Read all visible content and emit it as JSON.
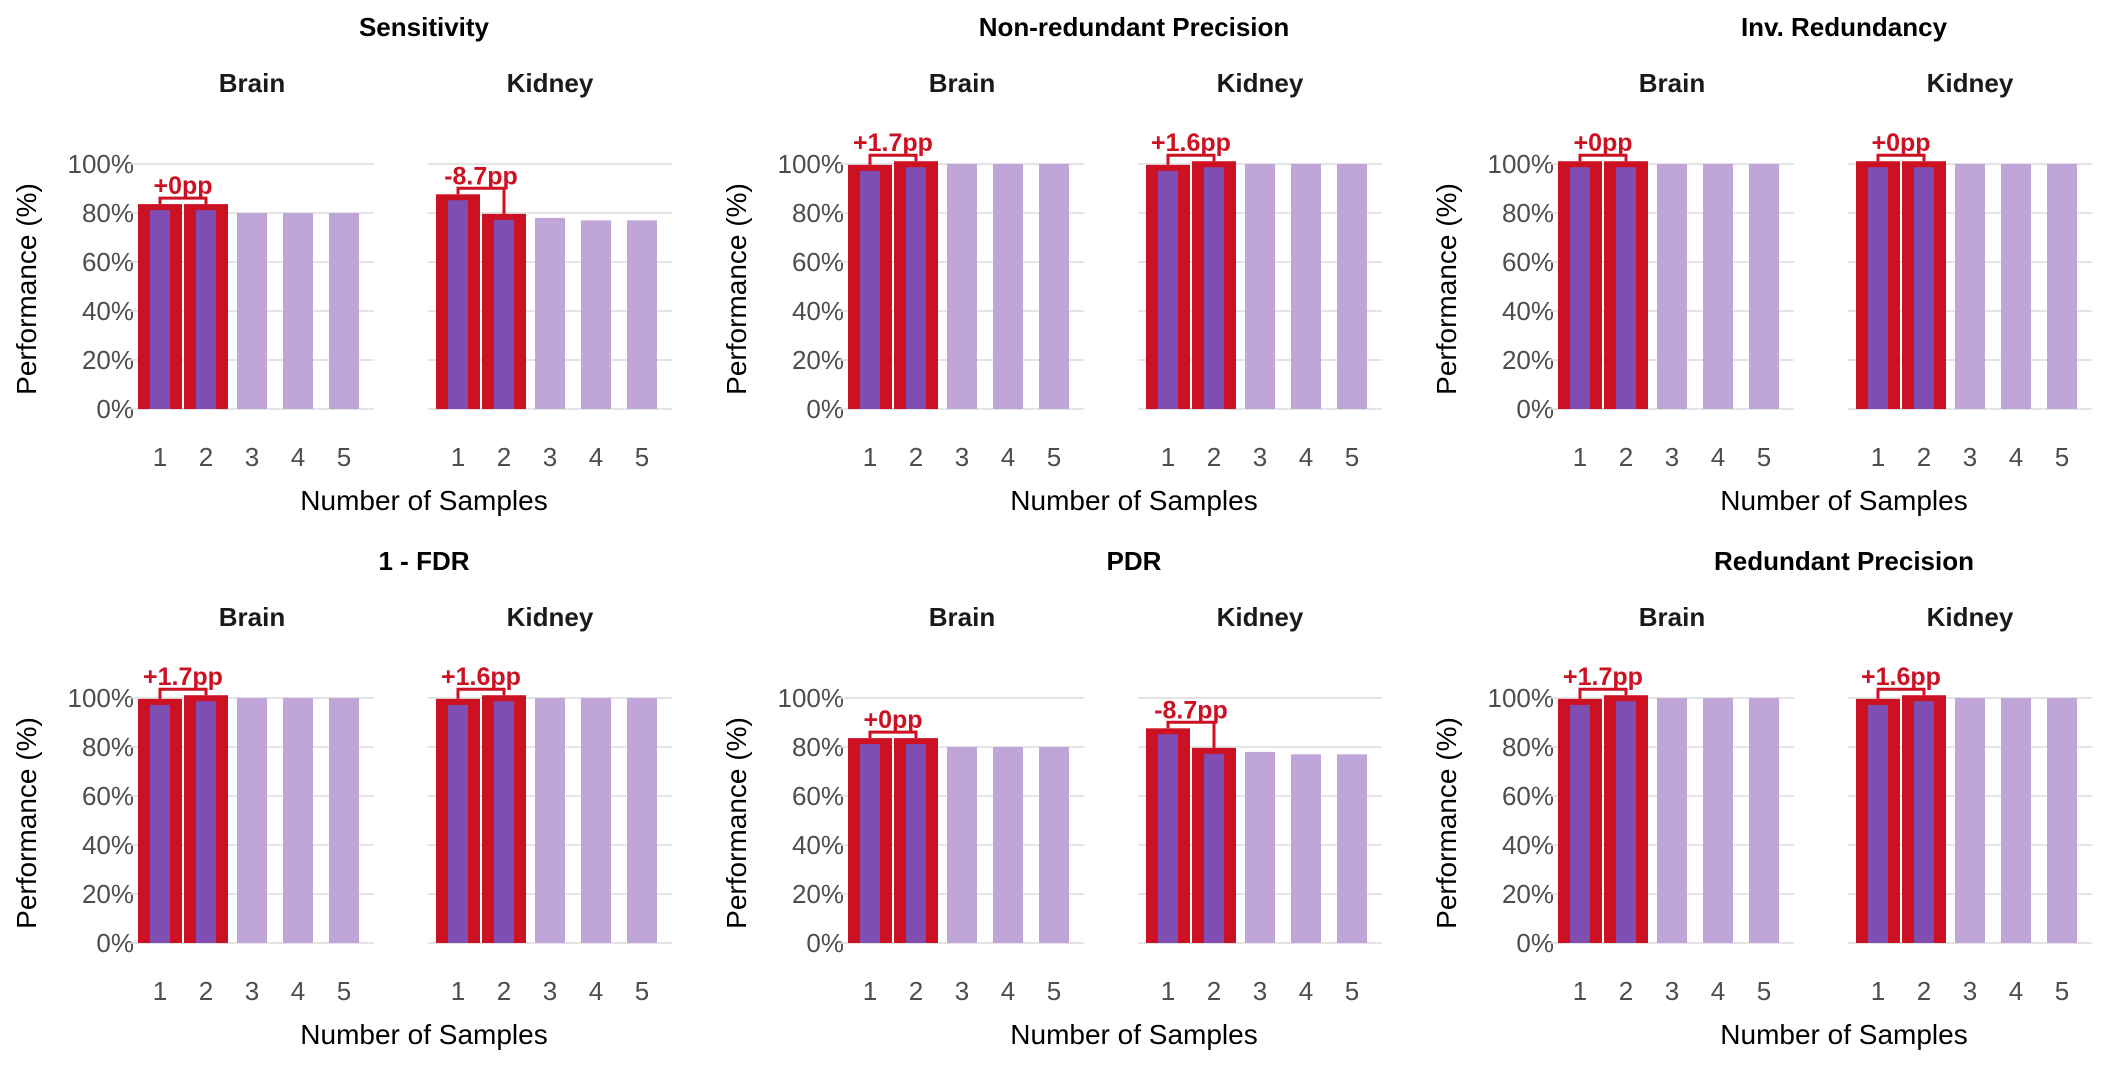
{
  "colors": {
    "bar_light": "#bfa5d8",
    "bar_dark": "#7e4eb3",
    "highlight": "#cc1122",
    "grid": "#dcdcdc"
  },
  "chart_data": [
    {
      "type": "bar",
      "title": "Sensitivity",
      "xlabel": "Number of Samples",
      "ylabel": "Performance (%)",
      "y_ticks": [
        "0%",
        "20%",
        "40%",
        "60%",
        "80%",
        "100%"
      ],
      "ylim": [
        0,
        100
      ],
      "categories": [
        "1",
        "2",
        "3",
        "4",
        "5"
      ],
      "highlighted_categories": [
        "1",
        "2"
      ],
      "facets": [
        {
          "name": "Brain",
          "values": [
            82,
            82,
            80,
            80,
            80
          ],
          "annotation": "+0pp"
        },
        {
          "name": "Kidney",
          "values": [
            86,
            78,
            78,
            77,
            77
          ],
          "annotation": "-8.7pp"
        }
      ]
    },
    {
      "type": "bar",
      "title": "Non-redundant Precision",
      "xlabel": "Number of Samples",
      "ylabel": "Performance (%)",
      "y_ticks": [
        "0%",
        "20%",
        "40%",
        "60%",
        "80%",
        "100%"
      ],
      "ylim": [
        0,
        100
      ],
      "categories": [
        "1",
        "2",
        "3",
        "4",
        "5"
      ],
      "highlighted_categories": [
        "1",
        "2"
      ],
      "facets": [
        {
          "name": "Brain",
          "values": [
            98,
            99.5,
            100,
            100,
            100
          ],
          "annotation": "+1.7pp"
        },
        {
          "name": "Kidney",
          "values": [
            98,
            99.5,
            100,
            100,
            100
          ],
          "annotation": "+1.6pp"
        }
      ]
    },
    {
      "type": "bar",
      "title": "Inv. Redundancy",
      "xlabel": "Number of Samples",
      "ylabel": "Performance (%)",
      "y_ticks": [
        "0%",
        "20%",
        "40%",
        "60%",
        "80%",
        "100%"
      ],
      "ylim": [
        0,
        100
      ],
      "categories": [
        "1",
        "2",
        "3",
        "4",
        "5"
      ],
      "highlighted_categories": [
        "1",
        "2"
      ],
      "facets": [
        {
          "name": "Brain",
          "values": [
            99.5,
            99.5,
            100,
            100,
            100
          ],
          "annotation": "+0pp"
        },
        {
          "name": "Kidney",
          "values": [
            99.5,
            99.5,
            100,
            100,
            100
          ],
          "annotation": "+0pp"
        }
      ]
    },
    {
      "type": "bar",
      "title": "1 - FDR",
      "xlabel": "Number of Samples",
      "ylabel": "Performance (%)",
      "y_ticks": [
        "0%",
        "20%",
        "40%",
        "60%",
        "80%",
        "100%"
      ],
      "ylim": [
        0,
        100
      ],
      "categories": [
        "1",
        "2",
        "3",
        "4",
        "5"
      ],
      "highlighted_categories": [
        "1",
        "2"
      ],
      "facets": [
        {
          "name": "Brain",
          "values": [
            98,
            99.5,
            100,
            100,
            100
          ],
          "annotation": "+1.7pp"
        },
        {
          "name": "Kidney",
          "values": [
            98,
            99.5,
            100,
            100,
            100
          ],
          "annotation": "+1.6pp"
        }
      ]
    },
    {
      "type": "bar",
      "title": "PDR",
      "xlabel": "Number of Samples",
      "ylabel": "Performance (%)",
      "y_ticks": [
        "0%",
        "20%",
        "40%",
        "60%",
        "80%",
        "100%"
      ],
      "ylim": [
        0,
        100
      ],
      "categories": [
        "1",
        "2",
        "3",
        "4",
        "5"
      ],
      "highlighted_categories": [
        "1",
        "2"
      ],
      "facets": [
        {
          "name": "Brain",
          "values": [
            82,
            82,
            80,
            80,
            80
          ],
          "annotation": "+0pp"
        },
        {
          "name": "Kidney",
          "values": [
            86,
            78,
            78,
            77,
            77
          ],
          "annotation": "-8.7pp"
        }
      ]
    },
    {
      "type": "bar",
      "title": "Redundant Precision",
      "xlabel": "Number of Samples",
      "ylabel": "Performance (%)",
      "y_ticks": [
        "0%",
        "20%",
        "40%",
        "60%",
        "80%",
        "100%"
      ],
      "ylim": [
        0,
        100
      ],
      "categories": [
        "1",
        "2",
        "3",
        "4",
        "5"
      ],
      "highlighted_categories": [
        "1",
        "2"
      ],
      "facets": [
        {
          "name": "Brain",
          "values": [
            98,
            99.5,
            100,
            100,
            100
          ],
          "annotation": "+1.7pp"
        },
        {
          "name": "Kidney",
          "values": [
            98,
            99.5,
            100,
            100,
            100
          ],
          "annotation": "+1.6pp"
        }
      ]
    }
  ]
}
